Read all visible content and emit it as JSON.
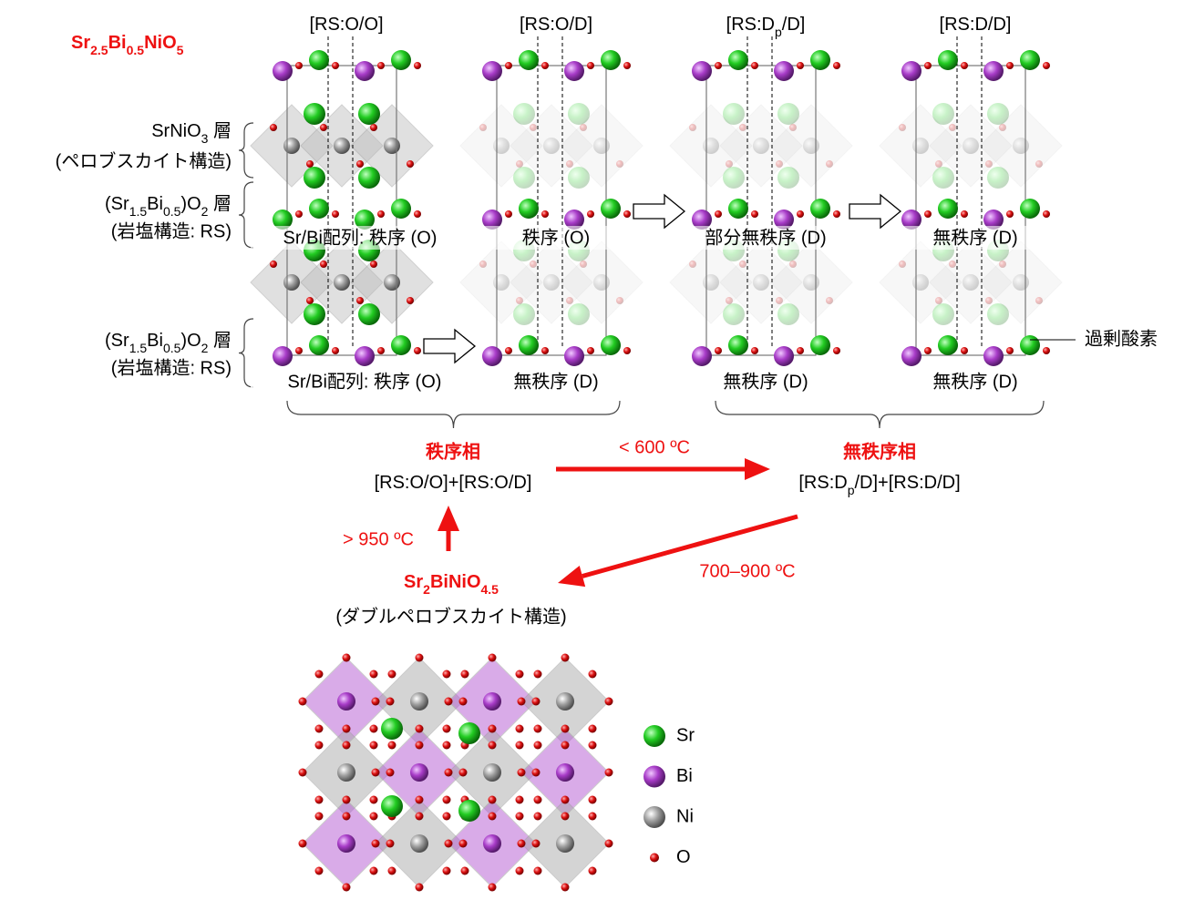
{
  "title": [
    "Sr",
    "2.5",
    "Bi",
    "0.5",
    "NiO",
    "5"
  ],
  "layer_labels": [
    {
      "name": [
        "SrNiO",
        "3",
        " 層"
      ],
      "structure": "(ペロブスカイト構造)"
    },
    {
      "name": [
        "(Sr",
        "1.5",
        "Bi",
        "0.5",
        ")O",
        "2",
        " 層"
      ],
      "structure": "(岩塩構造: RS)"
    },
    {
      "name": [
        "(Sr",
        "1.5",
        "Bi",
        "0.5",
        ")O",
        "2",
        " 層"
      ],
      "structure": "(岩塩構造: RS)"
    }
  ],
  "structures": [
    {
      "label": [
        "[RS:O/O]"
      ],
      "upper": "Sr/Bi配列: 秩序 (O)",
      "lower": "Sr/Bi配列: 秩序 (O)"
    },
    {
      "label": [
        "[RS:O/D]"
      ],
      "upper": "秩序 (O)",
      "lower": "無秩序 (D)"
    },
    {
      "label": [
        "[RS:D",
        "p",
        "/D]"
      ],
      "upper": "部分無秩序 (D)",
      "lower": "無秩序 (D)"
    },
    {
      "label": [
        "[RS:D/D]"
      ],
      "upper": "無秩序 (D)",
      "lower": "無秩序 (D)"
    }
  ],
  "excess_oxygen": "過剰酸素",
  "ordered_phase": {
    "name": "秩序相",
    "composition": [
      "[RS:O/O]+[RS:O/D]"
    ]
  },
  "disordered_phase": {
    "name": "無秩序相",
    "composition": [
      "[RS:D",
      "p",
      "/D]+[RS:D/D]"
    ]
  },
  "transitions": {
    "ordered_to_disordered": "< 600 ºC",
    "double_to_ordered": "> 950 ºC",
    "disordered_to_double": "700–900 ºC"
  },
  "double_perovskite": {
    "formula": [
      "Sr",
      "2",
      "BiNiO",
      "4.5"
    ],
    "structure": "(ダブルペロブスカイト構造)"
  },
  "legend": [
    "Sr",
    "Bi",
    "Ni",
    "O"
  ]
}
